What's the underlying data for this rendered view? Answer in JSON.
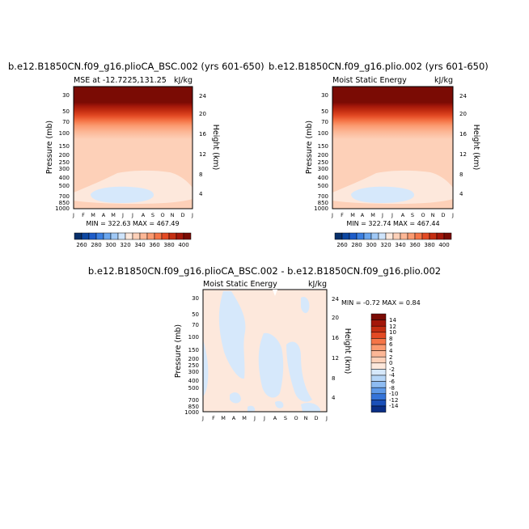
{
  "chart_data": [
    {
      "type": "heatmap",
      "title": "b.e12.B1850CN.f09_g16.plioCA_BSC.002 (yrs 601-650)",
      "subtitle_left": "MSE at -12.7225,131.25",
      "subtitle_right": "kJ/kg",
      "ylabel": "Pressure (mb)",
      "ylabel_right": "Height (km)",
      "x": [
        "J",
        "F",
        "M",
        "A",
        "M",
        "J",
        "J",
        "A",
        "S",
        "O",
        "N",
        "D",
        "J"
      ],
      "pressure_ticks": [
        30,
        50,
        70,
        100,
        150,
        200,
        250,
        300,
        400,
        500,
        700,
        850,
        1000
      ],
      "height_ticks": [
        24,
        20,
        16,
        12,
        8,
        4
      ],
      "stats": "MIN = 322.63  MAX = 467.49",
      "min": 322.63,
      "max": 467.49,
      "layers_top_down": [
        {
          "pressure": 30,
          "value": 400
        },
        {
          "pressure": 55,
          "value": 390
        },
        {
          "pressure": 65,
          "value": 380
        },
        {
          "pressure": 75,
          "value": 370
        },
        {
          "pressure": 95,
          "value": 360
        },
        {
          "pressure": 120,
          "value": 350
        },
        {
          "pressure": 160,
          "value": 340
        },
        {
          "pressure": 380,
          "value": 330
        },
        {
          "pressure": 1000,
          "value": 340
        }
      ],
      "colorbar": {
        "labels": [
          "260",
          "280",
          "300",
          "320",
          "340",
          "360",
          "380",
          "400"
        ],
        "colors": [
          "#08306b",
          "#0d47a1",
          "#1e5cc8",
          "#3b7fe0",
          "#6aa6ee",
          "#9fc8f5",
          "#cfe4fb",
          "#fde8dc",
          "#fdd0b8",
          "#fcb796",
          "#fb9a70",
          "#f57547",
          "#e34a24",
          "#c42e12",
          "#a3170a",
          "#7a0b04"
        ]
      }
    },
    {
      "type": "heatmap",
      "title": "b.e12.B1850CN.f09_g16.plio.002 (yrs 601-650)",
      "subtitle_left": "Moist Static Energy",
      "subtitle_right": "kJ/kg",
      "ylabel": "Pressure (mb)",
      "ylabel_right": "Height (km)",
      "x": [
        "J",
        "F",
        "M",
        "A",
        "M",
        "J",
        "J",
        "A",
        "S",
        "O",
        "N",
        "D",
        "J"
      ],
      "pressure_ticks": [
        30,
        50,
        70,
        100,
        150,
        200,
        250,
        300,
        400,
        500,
        700,
        850,
        1000
      ],
      "height_ticks": [
        24,
        20,
        16,
        12,
        8,
        4
      ],
      "stats": "MIN = 322.74  MAX = 467.44",
      "min": 322.74,
      "max": 467.44,
      "colorbar": {
        "labels": [
          "260",
          "280",
          "300",
          "320",
          "340",
          "360",
          "380",
          "400"
        ]
      }
    },
    {
      "type": "heatmap",
      "title": "b.e12.B1850CN.f09_g16.plioCA_BSC.002 - b.e12.B1850CN.f09_g16.plio.002",
      "subtitle_left": "Moist Static Energy",
      "subtitle_right": "kJ/kg",
      "ylabel": "Pressure (mb)",
      "ylabel_right": "Height (km)",
      "x": [
        "J",
        "F",
        "M",
        "A",
        "M",
        "J",
        "J",
        "A",
        "S",
        "O",
        "N",
        "D",
        "J"
      ],
      "pressure_ticks": [
        30,
        50,
        70,
        100,
        150,
        200,
        250,
        300,
        400,
        500,
        700,
        850,
        1000
      ],
      "height_ticks": [
        24,
        20,
        16,
        12,
        8,
        4
      ],
      "stats": "MIN = -0.72  MAX = 0.84",
      "min": -0.72,
      "max": 0.84,
      "colorbar": {
        "labels": [
          "14",
          "12",
          "10",
          "8",
          "6",
          "4",
          "2",
          "0",
          "-2",
          "-4",
          "-6",
          "-8",
          "-10",
          "-12",
          "-14"
        ],
        "colors": [
          "#7a0b04",
          "#a3170a",
          "#c42e12",
          "#e34a24",
          "#f57547",
          "#fb9a70",
          "#fcb796",
          "#fdd0b8",
          "#fde8dc",
          "#d6e8fb",
          "#b5d5f7",
          "#8ebcf2",
          "#5f9ae8",
          "#3574d8",
          "#1a4fb8",
          "#0a2e86"
        ]
      }
    }
  ]
}
